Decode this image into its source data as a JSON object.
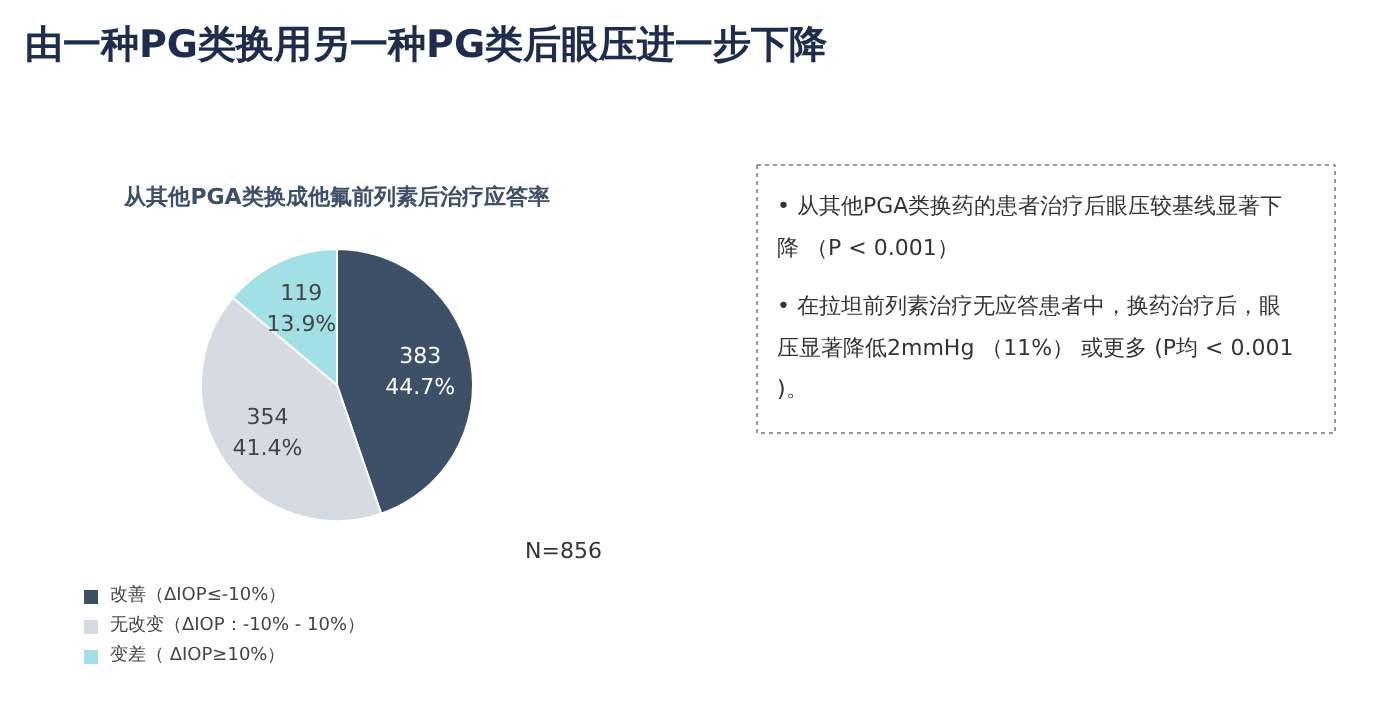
{
  "chart_data": {
    "type": "pie",
    "title": "由一种PG类换用另一种PG类后眼压进一步下降",
    "subtitle": "从其他PGA类换成他氟前列素后治疗应答率",
    "categories": [
      "改善（ΔIOP≤-10%）",
      "无改变（ΔIOP：-10% - 10%）",
      "变差（ ΔIOP≥10%）"
    ],
    "values": [
      383,
      354,
      119
    ],
    "colors": [
      "#3d5068",
      "#d5dae3",
      "#a3e0e5"
    ],
    "value_labels": [
      "383\n44.7%",
      "354\n41.4%",
      "119\n13.9%"
    ],
    "legend": "bottom left",
    "annotations": [
      "N=856",
      "• 从其他PGA类换药的患者治疗后眼压较基线显著下降 （P < 0.001）",
      "• 在拉坦前列素治疗无应答患者中，换药治疗后，眼压显著降低2mmHg （11%） 或更多 (P均 < 0.001)。"
    ]
  }
}
